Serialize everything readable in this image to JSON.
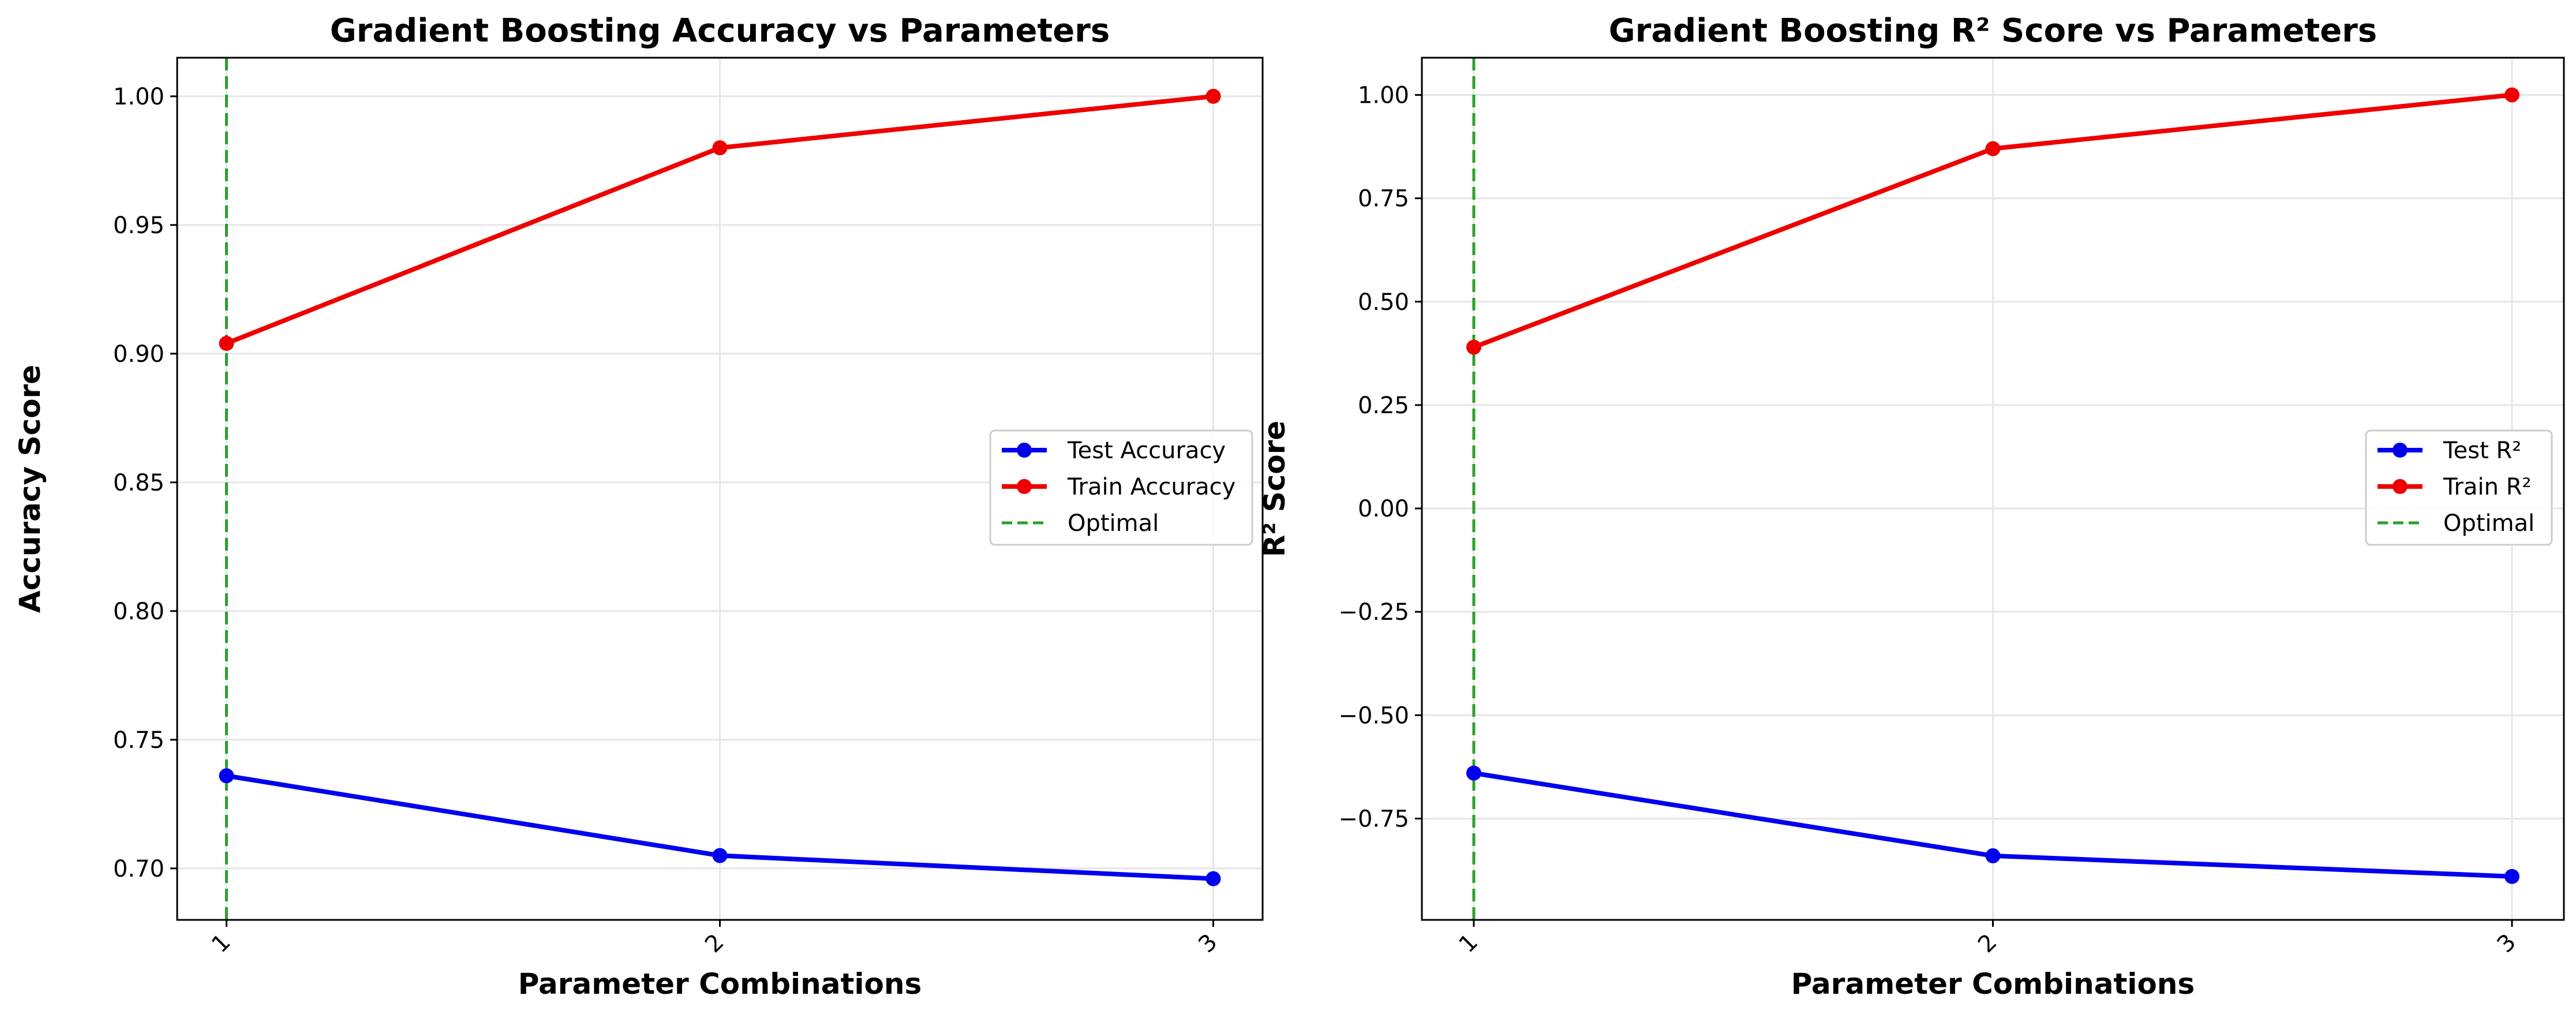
{
  "chart_data": [
    {
      "type": "line",
      "title": "Gradient Boosting Accuracy vs Parameters",
      "xlabel": "Parameter Combinations",
      "ylabel": "Accuracy Score",
      "categories": [
        "1",
        "2",
        "3"
      ],
      "x": [
        1,
        2,
        3
      ],
      "xlim": [
        0.9,
        3.1
      ],
      "ylim": [
        0.68,
        1.015
      ],
      "yticks": [
        0.7,
        0.75,
        0.8,
        0.85,
        0.9,
        0.95,
        1.0
      ],
      "ytick_labels": [
        "0.70",
        "0.75",
        "0.80",
        "0.85",
        "0.90",
        "0.95",
        "1.00"
      ],
      "grid": true,
      "legend_position": "center-right",
      "series": [
        {
          "name": "Test Accuracy",
          "values": [
            0.736,
            0.705,
            0.696
          ],
          "color": "#0000ee",
          "marker": "circle",
          "style": "solid"
        },
        {
          "name": "Train Accuracy",
          "values": [
            0.904,
            0.98,
            1.0
          ],
          "color": "#ee0000",
          "marker": "circle",
          "style": "solid"
        }
      ],
      "vline": {
        "name": "Optimal",
        "x": 1,
        "color": "#2ca02c",
        "style": "dashed"
      }
    },
    {
      "type": "line",
      "title": "Gradient Boosting R² Score vs Parameters",
      "xlabel": "Parameter Combinations",
      "ylabel": "R² Score",
      "categories": [
        "1",
        "2",
        "3"
      ],
      "x": [
        1,
        2,
        3
      ],
      "xlim": [
        0.9,
        3.1
      ],
      "ylim": [
        -0.995,
        1.09
      ],
      "yticks": [
        -0.75,
        -0.5,
        -0.25,
        0.0,
        0.25,
        0.5,
        0.75,
        1.0
      ],
      "ytick_labels": [
        "−0.75",
        "−0.50",
        "−0.25",
        "0.00",
        "0.25",
        "0.50",
        "0.75",
        "1.00"
      ],
      "grid": true,
      "legend_position": "center-right",
      "series": [
        {
          "name": "Test R²",
          "values": [
            -0.64,
            -0.84,
            -0.89
          ],
          "color": "#0000ee",
          "marker": "circle",
          "style": "solid"
        },
        {
          "name": "Train R²",
          "values": [
            0.39,
            0.87,
            1.0
          ],
          "color": "#ee0000",
          "marker": "circle",
          "style": "solid"
        }
      ],
      "vline": {
        "name": "Optimal",
        "x": 1,
        "color": "#2ca02c",
        "style": "dashed"
      }
    }
  ]
}
